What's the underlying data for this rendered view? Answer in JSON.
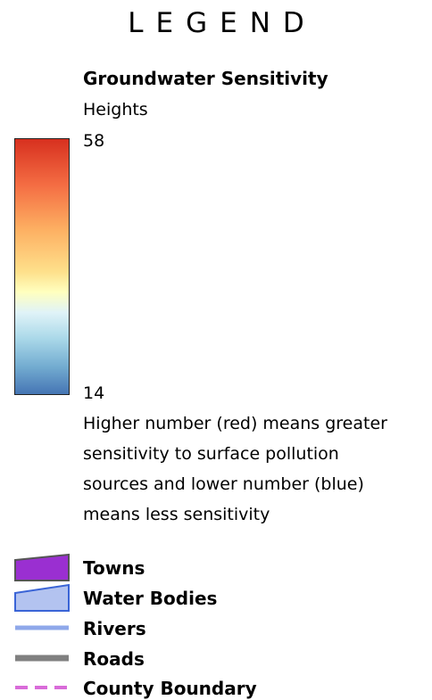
{
  "legend": {
    "title": "LEGEND"
  },
  "groundwater": {
    "title": "Groundwater Sensitivity",
    "field": "Heights",
    "max_label": "58",
    "min_label": "14",
    "ramp_colors": [
      "#d7301f",
      "#f46d43",
      "#fdae61",
      "#fee08b",
      "#ffffbf",
      "#e0f3f8",
      "#abd9e9",
      "#74add1",
      "#4575b4"
    ],
    "note_lines": [
      "Higher number (red) means greater",
      "sensitivity to surface pollution",
      "sources and lower number (blue)",
      "means less sensitivity"
    ]
  },
  "items": [
    {
      "label": "Towns",
      "symbol": "polygon",
      "fill": "#9a2fd1",
      "stroke": "#555555"
    },
    {
      "label": "Water Bodies",
      "symbol": "polygon",
      "fill": "#b3c3f0",
      "stroke": "#3a64d6"
    },
    {
      "label": "Rivers",
      "symbol": "line",
      "stroke": "#8fa8ea"
    },
    {
      "label": "Roads",
      "symbol": "line",
      "stroke": "#808080"
    },
    {
      "label": "County Boundary",
      "symbol": "dashed-line",
      "stroke": "#d96bd9"
    }
  ]
}
